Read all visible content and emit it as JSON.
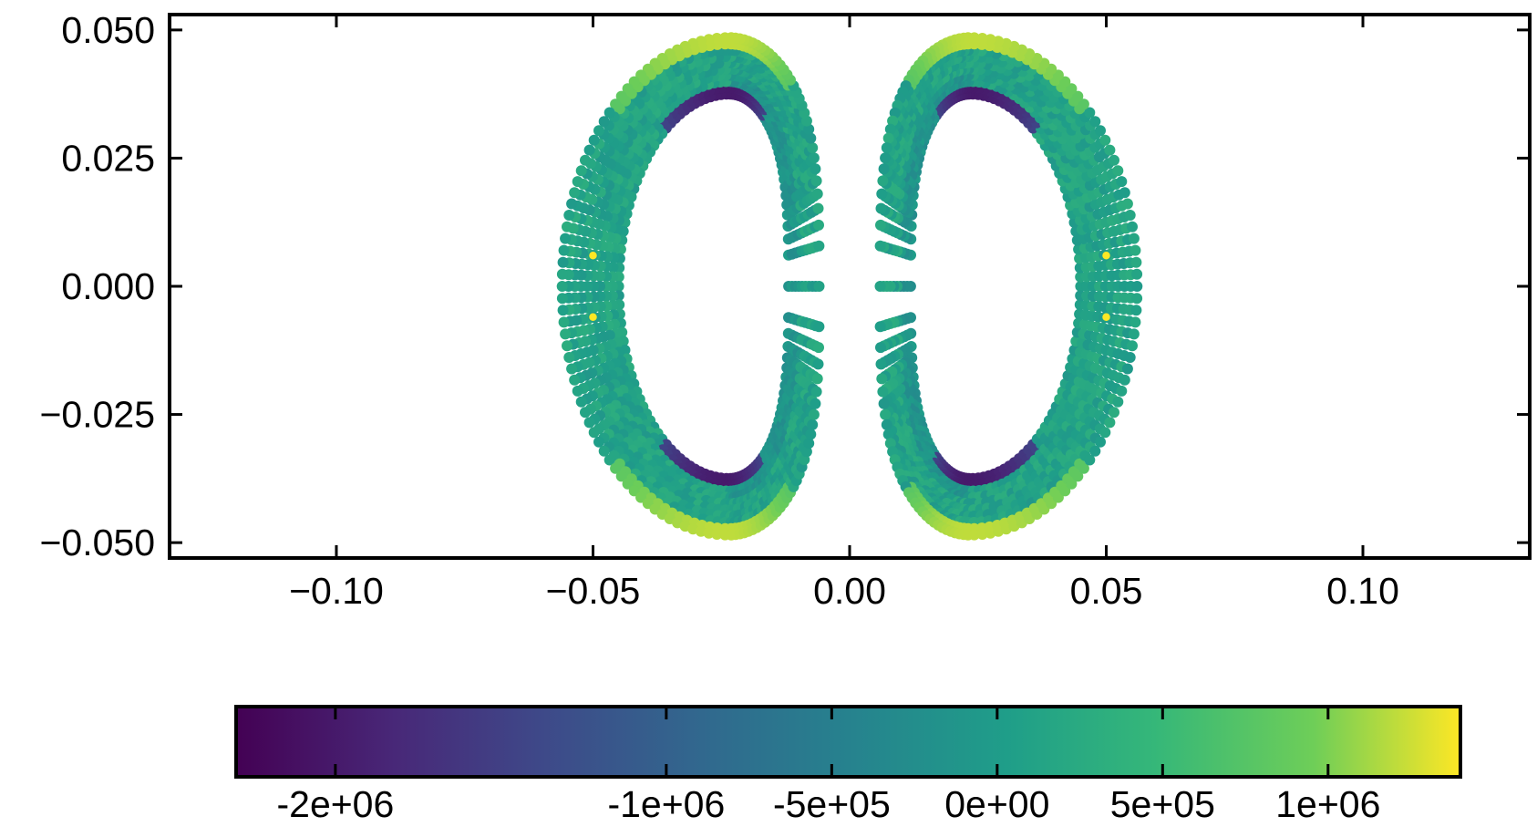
{
  "chart_data": {
    "type": "scatter",
    "title": "",
    "xlabel": "",
    "ylabel": "",
    "xlim": [
      -0.1325,
      0.1325
    ],
    "ylim": [
      -0.053,
      0.053
    ],
    "x_ticks": [
      -0.1,
      -0.05,
      0.0,
      0.05,
      0.1
    ],
    "x_tick_labels": [
      "−0.10",
      "−0.05",
      "0.00",
      "0.05",
      "0.10"
    ],
    "y_ticks": [
      0.05,
      0.025,
      0.0,
      -0.025,
      -0.05
    ],
    "y_tick_labels": [
      "0.050",
      "0.025",
      "0.000",
      "−0.025",
      "−0.050"
    ],
    "grid": false,
    "series": [
      {
        "shape": "two D-shaped rings mirrored about x = 0",
        "ring_center_x": [
          -0.0235,
          0.0235
        ],
        "ring_center_y": 0.0,
        "outer_half_width": 0.0325,
        "inner_half_width": 0.0215,
        "outer_half_height": 0.0485,
        "inner_half_height": 0.0375,
        "color_field": "stress",
        "color_profile": [
          {
            "position": "outer edge top/bottom",
            "value": 1200000
          },
          {
            "position": "ring body",
            "value": 100000
          },
          {
            "position": "inner edge top/bottom",
            "value": -2000000
          },
          {
            "position": "inner wall near x = 0",
            "value": -300000
          }
        ],
        "highlight_points": [
          {
            "x": -0.05,
            "y": 0.006
          },
          {
            "x": -0.05,
            "y": -0.006
          },
          {
            "x": 0.05,
            "y": 0.006
          },
          {
            "x": 0.05,
            "y": -0.006
          }
        ]
      }
    ],
    "colorbar": {
      "colormap": "viridis",
      "range": [
        -2300000.0,
        1400000.0
      ],
      "ticks": [
        -2000000,
        -1000000,
        -500000,
        0,
        500000,
        1000000
      ],
      "tick_labels": [
        "-2e+06",
        "-1e+06",
        "-5e+05",
        "0e+00",
        "5e+05",
        "1e+06"
      ],
      "orientation": "horizontal",
      "placement": "bottom"
    }
  }
}
